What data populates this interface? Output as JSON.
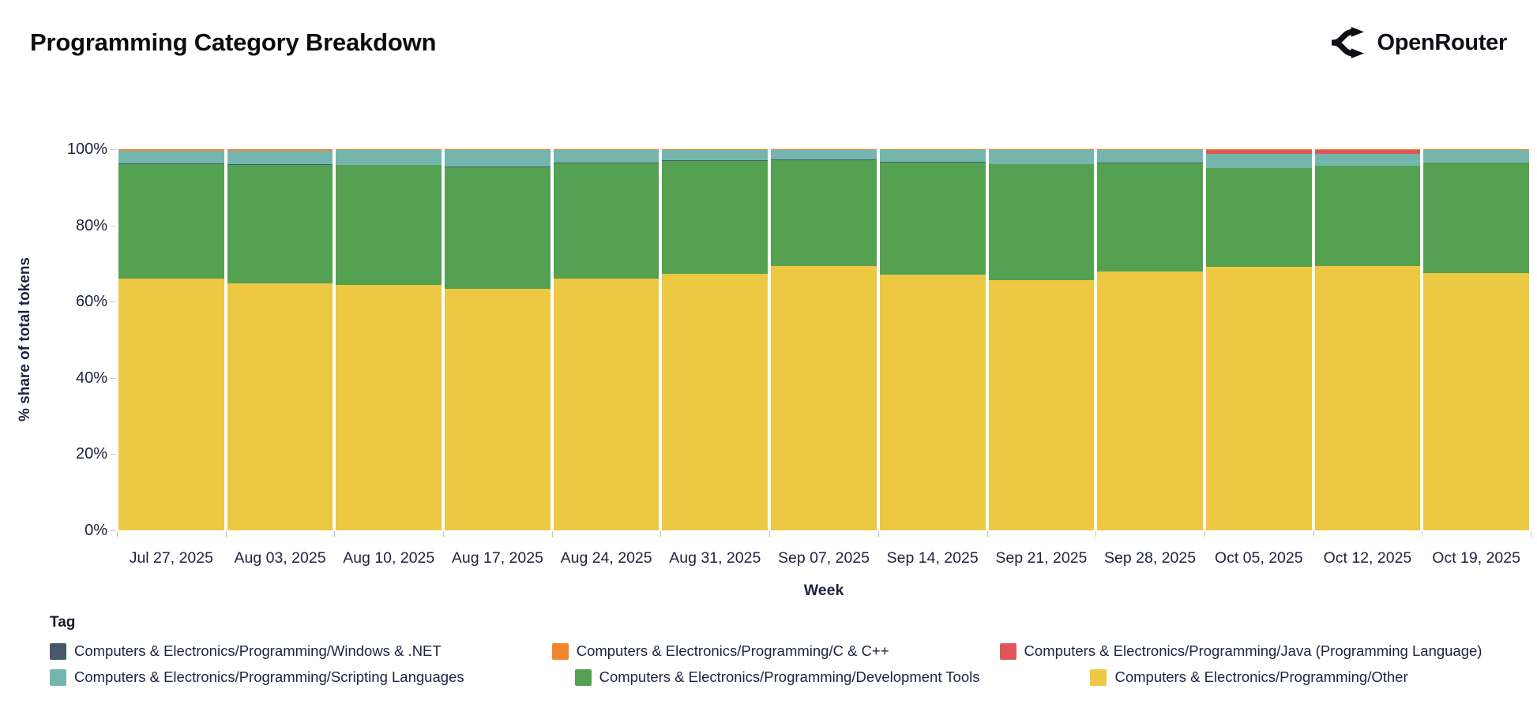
{
  "header": {
    "title": "Programming Category Breakdown",
    "brand": "OpenRouter"
  },
  "chart_data": {
    "type": "stacked-bar-100",
    "title": "Programming Category Breakdown",
    "xlabel": "Week",
    "ylabel": "% share of total tokens",
    "legend_title": "Tag",
    "ylim": [
      0,
      100
    ],
    "grid": false,
    "legend_position": "bottom",
    "ytick_labels": [
      "0%",
      "20%",
      "40%",
      "60%",
      "80%",
      "100%"
    ],
    "categories": [
      "Jul 27, 2025",
      "Aug 03, 2025",
      "Aug 10, 2025",
      "Aug 17, 2025",
      "Aug 24, 2025",
      "Aug 31, 2025",
      "Sep 07, 2025",
      "Sep 14, 2025",
      "Sep 21, 2025",
      "Sep 28, 2025",
      "Oct 05, 2025",
      "Oct 12, 2025",
      "Oct 19, 2025"
    ],
    "series": [
      {
        "name": "Computers & Electronics/Programming/Other",
        "color": "#ecc843",
        "values": [
          66.0,
          64.9,
          64.4,
          63.4,
          66.0,
          67.3,
          69.3,
          67.0,
          65.6,
          68.0,
          69.2,
          69.4,
          67.5
        ]
      },
      {
        "name": "Computers & Electronics/Programming/Development Tools",
        "color": "#55a152",
        "values": [
          30.1,
          31.0,
          31.4,
          31.9,
          30.3,
          29.7,
          27.9,
          29.5,
          30.4,
          28.3,
          25.8,
          26.2,
          28.9
        ]
      },
      {
        "name": "Computers & Electronics/Programming/Windows & .NET",
        "color": "#47586a",
        "pattern": true,
        "values": [
          0.1,
          0.1,
          0.1,
          0.1,
          0.1,
          0.1,
          0.1,
          0.1,
          0.1,
          0.1,
          0.1,
          0.1,
          0.1
        ]
      },
      {
        "name": "Computers & Electronics/Programming/Scripting Languages",
        "color": "#74b6ae",
        "values": [
          3.5,
          3.7,
          3.8,
          4.4,
          3.4,
          2.7,
          2.5,
          3.2,
          3.7,
          3.4,
          3.6,
          3.1,
          3.3
        ]
      },
      {
        "name": "Computers & Electronics/Programming/Java (Programming Language)",
        "color": "#e0575b",
        "values": [
          0,
          0,
          0,
          0,
          0,
          0,
          0,
          0,
          0,
          0,
          1.1,
          1.0,
          0
        ]
      },
      {
        "name": "Computers & Electronics/Programming/C & C++",
        "color": "#f1862c",
        "values": [
          0.3,
          0.3,
          0.3,
          0.2,
          0.2,
          0.2,
          0.2,
          0.2,
          0.2,
          0.2,
          0.2,
          0.2,
          0.2
        ]
      }
    ],
    "legend_rows": [
      [
        "Computers & Electronics/Programming/Windows & .NET",
        "Computers & Electronics/Programming/C & C++",
        "Computers & Electronics/Programming/Java (Programming Language)"
      ],
      [
        "Computers & Electronics/Programming/Scripting Languages",
        "Computers & Electronics/Programming/Development Tools",
        "Computers & Electronics/Programming/Other"
      ]
    ]
  }
}
